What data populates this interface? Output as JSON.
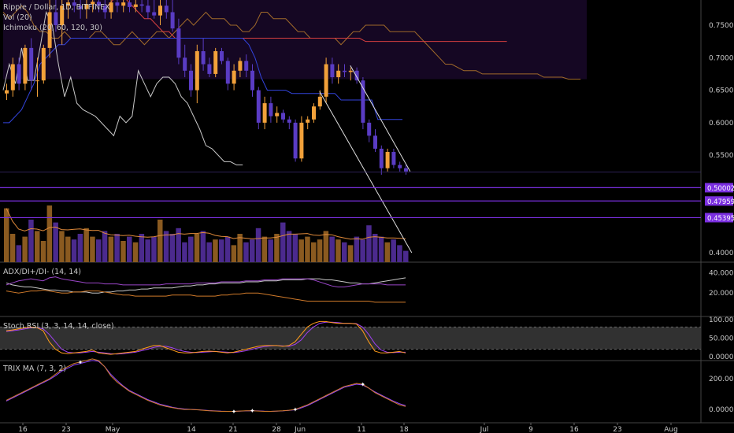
{
  "header": {
    "title": "Ripple / Dollar, 1D, BITFINEX",
    "ichimoku": "Ichimoku (20, 60, 120, 30)",
    "vol": "Vol (20)"
  },
  "panels": {
    "adx": "ADX/DI+/DI- (14, 14)",
    "stoch": "Stoch RSI (3, 3, 14, 14, close)",
    "trix": "TRIX MA (7, 3, 2)"
  },
  "chart_data": {
    "type": "candlestick",
    "price_ticks": [
      "0.75000",
      "0.70000",
      "0.65000",
      "0.60000",
      "0.55000",
      "0.40000"
    ],
    "price_badges": [
      {
        "label": "0.50002",
        "value": 0.50002
      },
      {
        "label": "0.47959",
        "value": 0.47959
      },
      {
        "label": "0.45395",
        "value": 0.45395
      }
    ],
    "adx_ticks": [
      "40.0000",
      "20.0000"
    ],
    "stoch_ticks": [
      "100.0000",
      "50.0000",
      "0.0000"
    ],
    "trix_ticks": [
      "200.0000",
      "0.0000"
    ],
    "x_ticks": [
      "16",
      "23",
      "May",
      "14",
      "21",
      "28",
      "Jun",
      "11",
      "18",
      "Jul",
      "9",
      "16",
      "23",
      "Aug"
    ],
    "candles": [
      {
        "o": 0.645,
        "h": 0.66,
        "l": 0.635,
        "c": 0.65
      },
      {
        "o": 0.65,
        "h": 0.7,
        "l": 0.64,
        "c": 0.69
      },
      {
        "o": 0.69,
        "h": 0.7,
        "l": 0.65,
        "c": 0.66
      },
      {
        "o": 0.66,
        "h": 0.72,
        "l": 0.65,
        "c": 0.715
      },
      {
        "o": 0.715,
        "h": 0.73,
        "l": 0.65,
        "c": 0.665
      },
      {
        "o": 0.665,
        "h": 0.7,
        "l": 0.64,
        "c": 0.665
      },
      {
        "o": 0.665,
        "h": 0.72,
        "l": 0.66,
        "c": 0.715
      },
      {
        "o": 0.715,
        "h": 0.79,
        "l": 0.7,
        "c": 0.77
      },
      {
        "o": 0.77,
        "h": 0.79,
        "l": 0.74,
        "c": 0.75
      },
      {
        "o": 0.75,
        "h": 0.79,
        "l": 0.72,
        "c": 0.78
      },
      {
        "o": 0.78,
        "h": 0.79,
        "l": 0.76,
        "c": 0.785
      },
      {
        "o": 0.785,
        "h": 0.79,
        "l": 0.77,
        "c": 0.78
      },
      {
        "o": 0.78,
        "h": 0.79,
        "l": 0.76,
        "c": 0.775
      },
      {
        "o": 0.775,
        "h": 0.79,
        "l": 0.76,
        "c": 0.782
      },
      {
        "o": 0.782,
        "h": 0.79,
        "l": 0.77,
        "c": 0.786
      },
      {
        "o": 0.786,
        "h": 0.79,
        "l": 0.77,
        "c": 0.78
      },
      {
        "o": 0.78,
        "h": 0.79,
        "l": 0.76,
        "c": 0.77
      },
      {
        "o": 0.77,
        "h": 0.79,
        "l": 0.76,
        "c": 0.785
      },
      {
        "o": 0.785,
        "h": 0.79,
        "l": 0.77,
        "c": 0.78
      },
      {
        "o": 0.78,
        "h": 0.79,
        "l": 0.77,
        "c": 0.785
      },
      {
        "o": 0.785,
        "h": 0.79,
        "l": 0.77,
        "c": 0.778
      },
      {
        "o": 0.778,
        "h": 0.79,
        "l": 0.77,
        "c": 0.782
      },
      {
        "o": 0.782,
        "h": 0.79,
        "l": 0.77,
        "c": 0.78
      },
      {
        "o": 0.78,
        "h": 0.79,
        "l": 0.76,
        "c": 0.77
      },
      {
        "o": 0.77,
        "h": 0.79,
        "l": 0.76,
        "c": 0.765
      },
      {
        "o": 0.765,
        "h": 0.79,
        "l": 0.75,
        "c": 0.78
      },
      {
        "o": 0.78,
        "h": 0.79,
        "l": 0.76,
        "c": 0.77
      },
      {
        "o": 0.77,
        "h": 0.79,
        "l": 0.74,
        "c": 0.745
      },
      {
        "o": 0.745,
        "h": 0.76,
        "l": 0.69,
        "c": 0.7
      },
      {
        "o": 0.7,
        "h": 0.72,
        "l": 0.67,
        "c": 0.68
      },
      {
        "o": 0.68,
        "h": 0.69,
        "l": 0.64,
        "c": 0.65
      },
      {
        "o": 0.65,
        "h": 0.72,
        "l": 0.63,
        "c": 0.71
      },
      {
        "o": 0.71,
        "h": 0.73,
        "l": 0.68,
        "c": 0.69
      },
      {
        "o": 0.69,
        "h": 0.7,
        "l": 0.67,
        "c": 0.675
      },
      {
        "o": 0.675,
        "h": 0.715,
        "l": 0.67,
        "c": 0.71
      },
      {
        "o": 0.71,
        "h": 0.715,
        "l": 0.69,
        "c": 0.695
      },
      {
        "o": 0.695,
        "h": 0.7,
        "l": 0.65,
        "c": 0.66
      },
      {
        "o": 0.66,
        "h": 0.69,
        "l": 0.65,
        "c": 0.68
      },
      {
        "o": 0.68,
        "h": 0.7,
        "l": 0.67,
        "c": 0.695
      },
      {
        "o": 0.695,
        "h": 0.705,
        "l": 0.67,
        "c": 0.68
      },
      {
        "o": 0.68,
        "h": 0.69,
        "l": 0.64,
        "c": 0.65
      },
      {
        "o": 0.65,
        "h": 0.655,
        "l": 0.59,
        "c": 0.6
      },
      {
        "o": 0.6,
        "h": 0.64,
        "l": 0.59,
        "c": 0.63
      },
      {
        "o": 0.63,
        "h": 0.64,
        "l": 0.6,
        "c": 0.61
      },
      {
        "o": 0.61,
        "h": 0.625,
        "l": 0.6,
        "c": 0.615
      },
      {
        "o": 0.615,
        "h": 0.62,
        "l": 0.6,
        "c": 0.605
      },
      {
        "o": 0.605,
        "h": 0.61,
        "l": 0.59,
        "c": 0.6
      },
      {
        "o": 0.6,
        "h": 0.605,
        "l": 0.54,
        "c": 0.545
      },
      {
        "o": 0.545,
        "h": 0.61,
        "l": 0.54,
        "c": 0.6
      },
      {
        "o": 0.6,
        "h": 0.61,
        "l": 0.59,
        "c": 0.605
      },
      {
        "o": 0.605,
        "h": 0.63,
        "l": 0.6,
        "c": 0.625
      },
      {
        "o": 0.625,
        "h": 0.65,
        "l": 0.62,
        "c": 0.64
      },
      {
        "o": 0.64,
        "h": 0.7,
        "l": 0.63,
        "c": 0.69
      },
      {
        "o": 0.69,
        "h": 0.7,
        "l": 0.66,
        "c": 0.67
      },
      {
        "o": 0.67,
        "h": 0.69,
        "l": 0.66,
        "c": 0.68
      },
      {
        "o": 0.68,
        "h": 0.69,
        "l": 0.67,
        "c": 0.678
      },
      {
        "o": 0.678,
        "h": 0.685,
        "l": 0.665,
        "c": 0.68
      },
      {
        "o": 0.68,
        "h": 0.685,
        "l": 0.66,
        "c": 0.665
      },
      {
        "o": 0.665,
        "h": 0.67,
        "l": 0.59,
        "c": 0.6
      },
      {
        "o": 0.6,
        "h": 0.605,
        "l": 0.57,
        "c": 0.58
      },
      {
        "o": 0.58,
        "h": 0.59,
        "l": 0.555,
        "c": 0.56
      },
      {
        "o": 0.56,
        "h": 0.565,
        "l": 0.52,
        "c": 0.53
      },
      {
        "o": 0.53,
        "h": 0.56,
        "l": 0.525,
        "c": 0.555
      },
      {
        "o": 0.555,
        "h": 0.56,
        "l": 0.53,
        "c": 0.535
      },
      {
        "o": 0.535,
        "h": 0.54,
        "l": 0.525,
        "c": 0.53
      },
      {
        "o": 0.53,
        "h": 0.535,
        "l": 0.52,
        "c": 0.525
      }
    ],
    "volume": [
      38,
      20,
      12,
      18,
      30,
      22,
      15,
      40,
      28,
      22,
      18,
      16,
      20,
      24,
      18,
      16,
      22,
      18,
      20,
      15,
      18,
      14,
      20,
      16,
      18,
      30,
      22,
      20,
      24,
      14,
      18,
      20,
      22,
      14,
      16,
      16,
      18,
      12,
      20,
      14,
      16,
      24,
      18,
      16,
      20,
      28,
      22,
      20,
      16,
      18,
      14,
      16,
      22,
      18,
      16,
      14,
      12,
      18,
      16,
      26,
      20,
      18,
      14,
      16,
      12,
      8
    ],
    "adx": [
      30,
      28,
      27,
      26,
      26,
      25,
      24,
      23,
      23,
      22,
      22,
      21,
      21,
      21,
      20,
      20,
      21,
      21,
      22,
      22,
      23,
      23,
      24,
      24,
      25,
      25,
      25,
      25,
      26,
      27,
      27,
      28,
      28,
      29,
      29,
      30,
      30,
      30,
      30,
      31,
      31,
      31,
      32,
      32,
      32,
      33,
      33,
      33,
      33,
      34,
      34,
      34,
      33,
      33,
      32,
      31,
      30,
      30,
      29,
      29,
      30,
      31,
      32,
      33,
      34,
      35
    ],
    "di_plus": [
      22,
      21,
      20,
      21,
      22,
      22,
      23,
      22,
      21,
      20,
      20,
      21,
      21,
      22,
      22,
      22,
      21,
      20,
      19,
      18,
      18,
      17,
      17,
      17,
      17,
      17,
      17,
      18,
      18,
      18,
      18,
      17,
      17,
      17,
      17,
      18,
      18,
      19,
      19,
      20,
      20,
      20,
      19,
      18,
      17,
      16,
      15,
      14,
      13,
      12,
      12,
      12,
      12,
      12,
      12,
      12,
      12,
      12,
      12,
      12,
      11,
      11,
      11,
      11,
      11,
      11
    ],
    "di_minus": [
      28,
      30,
      32,
      33,
      34,
      33,
      32,
      35,
      36,
      34,
      33,
      32,
      31,
      30,
      30,
      30,
      29,
      29,
      29,
      28,
      28,
      28,
      28,
      28,
      28,
      28,
      29,
      29,
      29,
      29,
      29,
      30,
      30,
      30,
      30,
      31,
      31,
      31,
      31,
      32,
      32,
      32,
      33,
      33,
      33,
      34,
      34,
      34,
      34,
      34,
      33,
      31,
      29,
      27,
      26,
      26,
      27,
      28,
      29,
      29,
      29,
      29,
      28,
      28,
      28,
      28
    ],
    "stoch_k": [
      70,
      72,
      75,
      78,
      80,
      78,
      70,
      40,
      20,
      10,
      8,
      10,
      12,
      14,
      18,
      10,
      8,
      6,
      8,
      10,
      12,
      14,
      20,
      25,
      30,
      30,
      24,
      18,
      12,
      10,
      10,
      12,
      14,
      15,
      14,
      12,
      10,
      12,
      16,
      20,
      24,
      28,
      30,
      30,
      30,
      28,
      30,
      40,
      60,
      80,
      90,
      95,
      95,
      92,
      90,
      90,
      90,
      88,
      70,
      40,
      15,
      10,
      10,
      12,
      14,
      10
    ],
    "stoch_d": [
      68,
      70,
      72,
      75,
      78,
      78,
      75,
      60,
      40,
      20,
      12,
      10,
      10,
      12,
      14,
      12,
      10,
      8,
      7,
      8,
      10,
      12,
      16,
      20,
      25,
      28,
      28,
      24,
      18,
      14,
      12,
      11,
      12,
      13,
      14,
      13,
      12,
      11,
      13,
      16,
      20,
      24,
      27,
      29,
      30,
      29,
      28,
      33,
      45,
      65,
      80,
      90,
      93,
      93,
      92,
      90,
      90,
      89,
      80,
      60,
      35,
      18,
      12,
      11,
      12,
      12
    ],
    "trix": [
      60,
      80,
      100,
      120,
      140,
      160,
      180,
      200,
      230,
      260,
      280,
      300,
      310,
      320,
      330,
      320,
      280,
      220,
      180,
      150,
      120,
      100,
      80,
      60,
      45,
      30,
      20,
      12,
      5,
      0,
      0,
      -2,
      -5,
      -8,
      -10,
      -12,
      -12,
      -12,
      -10,
      -8,
      -8,
      -10,
      -12,
      -12,
      -10,
      -8,
      -5,
      0,
      15,
      30,
      50,
      70,
      90,
      110,
      130,
      150,
      160,
      170,
      165,
      140,
      110,
      90,
      70,
      50,
      30,
      20
    ],
    "trix_sig": [
      55,
      75,
      95,
      115,
      135,
      155,
      175,
      195,
      220,
      250,
      270,
      290,
      300,
      310,
      320,
      315,
      280,
      230,
      190,
      155,
      125,
      105,
      85,
      65,
      50,
      35,
      25,
      15,
      8,
      3,
      1,
      -1,
      -4,
      -7,
      -9,
      -11,
      -12,
      -12,
      -11,
      -9,
      -8,
      -9,
      -11,
      -12,
      -11,
      -9,
      -6,
      -2,
      10,
      25,
      45,
      65,
      85,
      105,
      125,
      145,
      155,
      165,
      160,
      140,
      115,
      95,
      75,
      55,
      38,
      25
    ]
  },
  "colors": {
    "bull": "#f2a13a",
    "bear": "#5a3cc4",
    "vol_bull": "#8a5a20",
    "vol_bear": "#4b2a8e",
    "kijun": "#d84040",
    "tenkan": "#3344dd",
    "chikou": "#c8c8c8",
    "senkou": "#a06a2a",
    "cloud": "#1e0a32",
    "badge": "#7b2fe0",
    "adx_line": "#c8c8c8",
    "di_plus_line": "#9a46c8",
    "di_minus_line": "#d07a2a",
    "stoch_k_line": "#ff9c1a",
    "stoch_d_line": "#a040f0",
    "trix_line": "#d07a2a",
    "trix_sig_line": "#8e44ff",
    "grid": "#222222"
  }
}
